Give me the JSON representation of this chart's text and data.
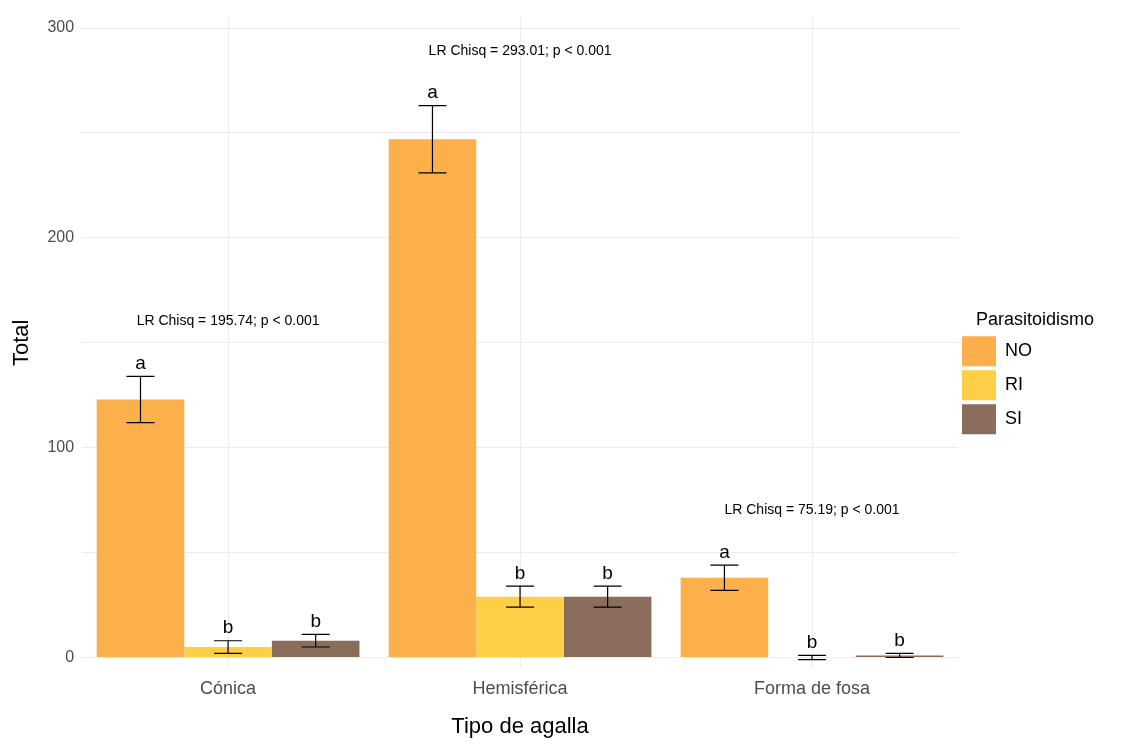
{
  "chart_data": {
    "type": "bar",
    "xlabel": "Tipo de agalla",
    "ylabel": "Total",
    "legend_title": "Parasitoidismo",
    "legend": "right",
    "grid": true,
    "categories": [
      "Cónica",
      "Hemisférica",
      "Forma de fosa"
    ],
    "series": [
      {
        "name": "NO",
        "color": "#fbb04b",
        "values": [
          123,
          247,
          38
        ],
        "errors": [
          11,
          16,
          6
        ],
        "value_labels": [
          "a",
          "a",
          "a"
        ]
      },
      {
        "name": "RI",
        "color": "#fdcf46",
        "values": [
          5,
          29,
          0
        ],
        "errors": [
          3,
          5,
          1
        ],
        "value_labels": [
          "b",
          "b",
          "b"
        ]
      },
      {
        "name": "SI",
        "color": "#8b6d5c",
        "values": [
          8,
          29,
          1
        ],
        "errors": [
          3,
          5,
          1
        ],
        "value_labels": [
          "b",
          "b",
          "b"
        ]
      }
    ],
    "ylim": [
      -5,
      305
    ],
    "yticks": [
      0,
      {
        "value": 50,
        "label": null
      },
      100,
      {
        "value": 150,
        "label": null
      },
      200,
      {
        "value": 250,
        "label": null
      },
      300
    ],
    "annotations": [
      "LR Chisq = 195.74; p < 0.001",
      "LR Chisq = 293.01; p < 0.001",
      "LR Chisq = 75.19; p < 0.001"
    ]
  }
}
